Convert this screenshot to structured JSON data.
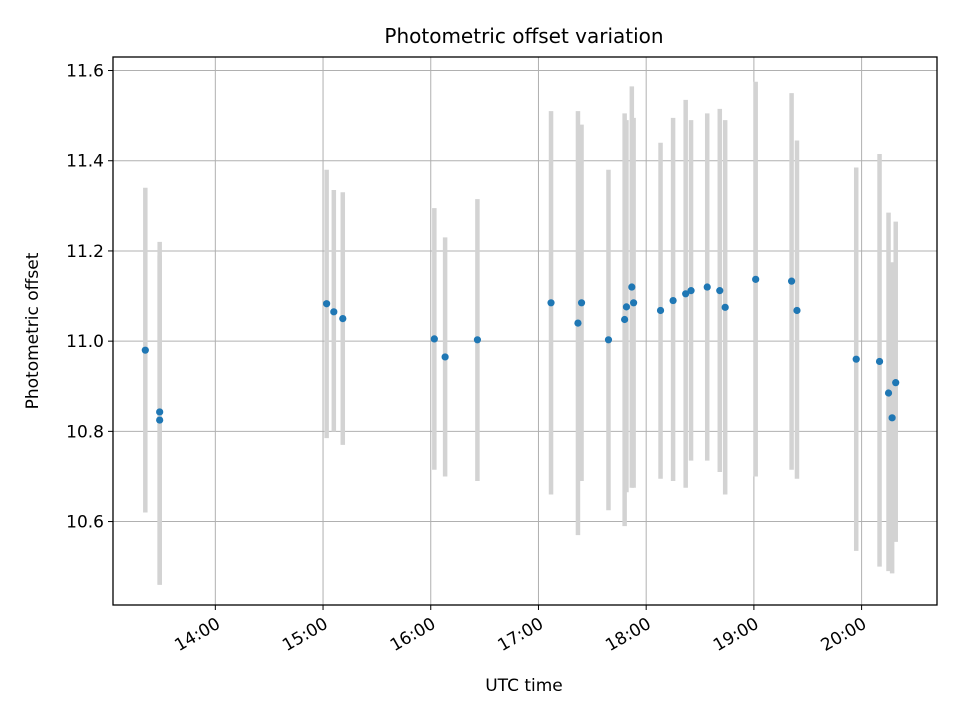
{
  "chart_data": {
    "type": "scatter",
    "title": "Photometric offset variation",
    "xlabel": "UTC time",
    "ylabel": "Photometric offset",
    "xlim": [
      "13:03",
      "20:42"
    ],
    "ylim": [
      10.415,
      11.63
    ],
    "grid": true,
    "xticks": [
      "14:00",
      "15:00",
      "16:00",
      "17:00",
      "18:00",
      "19:00",
      "20:00"
    ],
    "yticks": [
      "10.6",
      "10.8",
      "11.0",
      "11.2",
      "11.4",
      "11.6"
    ],
    "colors": {
      "point": "#1f77b4",
      "errorbar": "#d3d3d3",
      "grid": "#b0b0b0"
    },
    "points": [
      {
        "x": "13:21",
        "y": 10.98,
        "ymin": 10.62,
        "ymax": 11.34
      },
      {
        "x": "13:29",
        "y": 10.825,
        "ymin": 10.46,
        "ymax": 11.19
      },
      {
        "x": "13:29",
        "y": 10.843,
        "ymin": 10.46,
        "ymax": 11.22
      },
      {
        "x": "15:02",
        "y": 11.083,
        "ymin": 10.785,
        "ymax": 11.38
      },
      {
        "x": "15:06",
        "y": 11.065,
        "ymin": 10.8,
        "ymax": 11.335
      },
      {
        "x": "15:11",
        "y": 11.05,
        "ymin": 10.77,
        "ymax": 11.33
      },
      {
        "x": "16:02",
        "y": 11.005,
        "ymin": 10.715,
        "ymax": 11.295
      },
      {
        "x": "16:08",
        "y": 10.965,
        "ymin": 10.7,
        "ymax": 11.23
      },
      {
        "x": "16:26",
        "y": 11.003,
        "ymin": 10.69,
        "ymax": 11.315
      },
      {
        "x": "17:07",
        "y": 11.085,
        "ymin": 10.66,
        "ymax": 11.51
      },
      {
        "x": "17:22",
        "y": 11.04,
        "ymin": 10.57,
        "ymax": 11.51
      },
      {
        "x": "17:24",
        "y": 11.085,
        "ymin": 10.69,
        "ymax": 11.48
      },
      {
        "x": "17:39",
        "y": 11.003,
        "ymin": 10.625,
        "ymax": 11.38
      },
      {
        "x": "17:48",
        "y": 11.048,
        "ymin": 10.59,
        "ymax": 11.505
      },
      {
        "x": "17:49",
        "y": 11.076,
        "ymin": 10.665,
        "ymax": 11.49
      },
      {
        "x": "17:52",
        "y": 11.12,
        "ymin": 10.675,
        "ymax": 11.565
      },
      {
        "x": "17:53",
        "y": 11.085,
        "ymin": 10.675,
        "ymax": 11.495
      },
      {
        "x": "18:08",
        "y": 11.068,
        "ymin": 10.695,
        "ymax": 11.44
      },
      {
        "x": "18:15",
        "y": 11.09,
        "ymin": 10.69,
        "ymax": 11.495
      },
      {
        "x": "18:22",
        "y": 11.105,
        "ymin": 10.675,
        "ymax": 11.535
      },
      {
        "x": "18:25",
        "y": 11.112,
        "ymin": 10.735,
        "ymax": 11.49
      },
      {
        "x": "18:34",
        "y": 11.12,
        "ymin": 10.735,
        "ymax": 11.505
      },
      {
        "x": "18:41",
        "y": 11.112,
        "ymin": 10.71,
        "ymax": 11.515
      },
      {
        "x": "18:44",
        "y": 11.075,
        "ymin": 10.66,
        "ymax": 11.49
      },
      {
        "x": "19:01",
        "y": 11.137,
        "ymin": 10.7,
        "ymax": 11.575
      },
      {
        "x": "19:21",
        "y": 11.133,
        "ymin": 10.715,
        "ymax": 11.55
      },
      {
        "x": "19:24",
        "y": 11.068,
        "ymin": 10.695,
        "ymax": 11.445
      },
      {
        "x": "19:57",
        "y": 10.96,
        "ymin": 10.535,
        "ymax": 11.385
      },
      {
        "x": "20:10",
        "y": 10.955,
        "ymin": 10.5,
        "ymax": 11.415
      },
      {
        "x": "20:15",
        "y": 10.885,
        "ymin": 10.49,
        "ymax": 11.285
      },
      {
        "x": "20:17",
        "y": 10.83,
        "ymin": 10.485,
        "ymax": 11.175
      },
      {
        "x": "20:19",
        "y": 10.908,
        "ymin": 10.555,
        "ymax": 11.265
      }
    ]
  }
}
